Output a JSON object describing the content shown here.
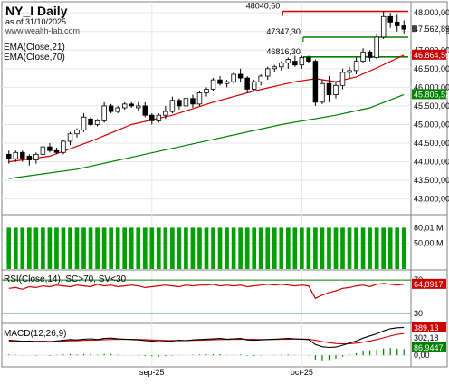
{
  "header": {
    "title": "NY_I Daily",
    "asof": "as of 31/10/2025",
    "site": "www.wealth-lab.com"
  },
  "colors": {
    "price": "#000000",
    "ema21": "#cc0000",
    "ema70": "#008000",
    "volume": "#00a000",
    "rsi": "#cc0000",
    "macd": "#000000",
    "macd_signal": "#cc0000",
    "hist": "#008000",
    "level": "#008000",
    "resistance": "#cc0000"
  },
  "chart_data": [
    {
      "type": "candlestick",
      "panel": "price",
      "title": "NY_I Daily",
      "ylim": [
        42700,
        48150
      ],
      "yticks": [
        "43.000,00",
        "43.500,00",
        "44.000,00",
        "44.500,00",
        "45.000,00",
        "45.500,00",
        "46.000,00",
        "46.500,00",
        "47.000,00",
        "47.500,00",
        "48.000,00"
      ],
      "candles": [
        [
          44200,
          44300,
          43950,
          44080
        ],
        [
          44080,
          44300,
          44000,
          44250
        ],
        [
          44250,
          44300,
          44000,
          44100
        ],
        [
          44150,
          44200,
          43900,
          44050
        ],
        [
          44050,
          44250,
          43950,
          44200
        ],
        [
          44200,
          44450,
          44150,
          44400
        ],
        [
          44400,
          44500,
          44250,
          44300
        ],
        [
          44300,
          44380,
          44200,
          44250
        ],
        [
          44250,
          44600,
          44200,
          44550
        ],
        [
          44550,
          44800,
          44450,
          44750
        ],
        [
          44750,
          44900,
          44650,
          44850
        ],
        [
          44850,
          45300,
          44800,
          45200
        ],
        [
          45150,
          45200,
          44950,
          45000
        ],
        [
          45000,
          45150,
          44950,
          45100
        ],
        [
          45100,
          45600,
          45050,
          45500
        ],
        [
          45500,
          45550,
          45300,
          45350
        ],
        [
          45350,
          45500,
          45300,
          45450
        ],
        [
          45450,
          45600,
          45400,
          45550
        ],
        [
          45550,
          45600,
          45450,
          45500
        ],
        [
          45450,
          45600,
          45350,
          45500
        ],
        [
          45500,
          45600,
          45200,
          45250
        ],
        [
          45250,
          45300,
          45000,
          45100
        ],
        [
          45100,
          45300,
          45050,
          45250
        ],
        [
          45250,
          45500,
          45150,
          45350
        ],
        [
          45350,
          45750,
          45300,
          45650
        ],
        [
          45650,
          45700,
          45400,
          45500
        ],
        [
          45500,
          45750,
          45450,
          45700
        ],
        [
          45700,
          45800,
          45450,
          45550
        ],
        [
          45550,
          45900,
          45500,
          45850
        ],
        [
          45850,
          46000,
          45750,
          45950
        ],
        [
          45950,
          46250,
          45900,
          46200
        ],
        [
          46200,
          46300,
          46050,
          46100
        ],
        [
          46100,
          46200,
          46000,
          46150
        ],
        [
          46150,
          46400,
          46100,
          46350
        ],
        [
          46350,
          46500,
          46150,
          46250
        ],
        [
          46250,
          46300,
          45850,
          45950
        ],
        [
          45950,
          46200,
          45900,
          46150
        ],
        [
          46150,
          46350,
          46050,
          46300
        ],
        [
          46300,
          46550,
          46200,
          46500
        ],
        [
          46500,
          46600,
          46400,
          46550
        ],
        [
          46550,
          46700,
          46450,
          46650
        ],
        [
          46650,
          46800,
          46500,
          46750
        ],
        [
          46700,
          46850,
          46550,
          46600
        ],
        [
          46600,
          46850,
          46500,
          46800
        ],
        [
          46800,
          46850,
          46650,
          46700
        ],
        [
          46700,
          46750,
          45500,
          45600
        ],
        [
          45600,
          46200,
          45550,
          46100
        ],
        [
          46100,
          46300,
          45600,
          45800
        ],
        [
          45800,
          46150,
          45700,
          46050
        ],
        [
          46050,
          46500,
          45950,
          46400
        ],
        [
          46400,
          46550,
          46250,
          46450
        ],
        [
          46450,
          46800,
          46350,
          46700
        ],
        [
          46700,
          47050,
          46650,
          46950
        ],
        [
          46950,
          47000,
          46700,
          46800
        ],
        [
          46800,
          47450,
          46750,
          47350
        ],
        [
          47350,
          48050,
          47300,
          47900
        ],
        [
          47900,
          48000,
          47600,
          47750
        ],
        [
          47750,
          47950,
          47500,
          47650
        ],
        [
          47650,
          47800,
          47450,
          47562
        ]
      ],
      "levels": [
        {
          "label": "48040,60",
          "value": 48040.6,
          "color": "resistance"
        },
        {
          "label": "47347,30",
          "value": 47347.3,
          "color": "level"
        },
        {
          "label": "46816,30",
          "value": 46816.3,
          "color": "level"
        }
      ],
      "last_price": "47.562,89",
      "ema21_label": "EMA(Close,21)",
      "ema21_value": "46.864,56",
      "ema21": [
        [
          0,
          44000
        ],
        [
          6,
          44150
        ],
        [
          12,
          44550
        ],
        [
          18,
          45000
        ],
        [
          24,
          45250
        ],
        [
          30,
          45600
        ],
        [
          36,
          45900
        ],
        [
          42,
          46150
        ],
        [
          45,
          46230
        ],
        [
          48,
          46150
        ],
        [
          51,
          46280
        ],
        [
          54,
          46520
        ],
        [
          58,
          46865
        ]
      ],
      "ema70_label": "EMA(Close,70)",
      "ema70_value": "45.805,52",
      "ema70": [
        [
          0,
          43550
        ],
        [
          10,
          43800
        ],
        [
          20,
          44200
        ],
        [
          30,
          44600
        ],
        [
          40,
          45000
        ],
        [
          48,
          45250
        ],
        [
          53,
          45450
        ],
        [
          58,
          45805
        ]
      ],
      "x_labels": [
        {
          "label": "sep-25",
          "index": 21
        },
        {
          "label": "oct-25",
          "index": 43
        }
      ]
    },
    {
      "type": "bar",
      "panel": "volume",
      "ylim": [
        0,
        100
      ],
      "yticks": [
        "50,00 M"
      ],
      "last_label": "80,01 M",
      "value_each": 80.01
    },
    {
      "type": "line",
      "panel": "rsi",
      "title": "RSI(Close,14), SC>70, SV<30",
      "ylim": [
        20,
        80
      ],
      "yticks": [
        "30",
        "70"
      ],
      "last_label": "64,8917",
      "values": [
        60,
        61,
        59,
        62,
        61,
        63,
        62,
        64,
        63,
        62,
        64,
        63,
        62,
        65,
        63,
        64,
        62,
        63,
        64,
        63,
        61,
        62,
        63,
        64,
        63,
        62,
        64,
        63,
        64,
        64,
        65,
        63,
        64,
        63,
        64,
        62,
        63,
        64,
        65,
        64,
        65,
        64,
        63,
        64,
        63,
        48,
        52,
        55,
        57,
        60,
        61,
        63,
        64,
        62,
        65,
        66,
        65,
        64,
        64.9
      ]
    },
    {
      "type": "line",
      "panel": "macd",
      "title": "MACD(12,26,9)",
      "ylim": [
        -150,
        420
      ],
      "yticks": [
        "0,00"
      ],
      "macd_label": "389,13",
      "signal_label": "302,18",
      "hist_label": "86,9447",
      "macd": [
        210,
        205,
        195,
        200,
        190,
        195,
        185,
        200,
        210,
        220,
        215,
        225,
        230,
        220,
        235,
        240,
        230,
        225,
        220,
        215,
        205,
        200,
        190,
        195,
        200,
        210,
        205,
        215,
        220,
        225,
        230,
        235,
        225,
        230,
        235,
        215,
        210,
        215,
        220,
        225,
        230,
        235,
        230,
        225,
        220,
        150,
        120,
        110,
        115,
        140,
        170,
        200,
        240,
        270,
        300,
        340,
        370,
        385,
        389
      ],
      "signal": [
        200,
        200,
        198,
        198,
        196,
        196,
        194,
        195,
        198,
        202,
        204,
        208,
        212,
        213,
        217,
        221,
        223,
        223,
        222,
        221,
        218,
        214,
        210,
        207,
        206,
        206,
        206,
        208,
        210,
        213,
        216,
        220,
        221,
        223,
        225,
        223,
        221,
        220,
        220,
        221,
        223,
        225,
        226,
        226,
        225,
        210,
        192,
        176,
        164,
        159,
        161,
        169,
        183,
        200,
        220,
        244,
        269,
        292,
        302
      ],
      "hist": [
        10,
        5,
        -3,
        2,
        -6,
        -1,
        -9,
        5,
        12,
        18,
        11,
        17,
        18,
        7,
        18,
        19,
        7,
        2,
        -2,
        -6,
        -13,
        -14,
        -20,
        -12,
        -6,
        4,
        -1,
        7,
        10,
        12,
        14,
        15,
        4,
        7,
        10,
        -8,
        -11,
        -5,
        0,
        4,
        7,
        10,
        4,
        -1,
        -5,
        -60,
        -72,
        -66,
        -49,
        -19,
        9,
        31,
        57,
        70,
        80,
        96,
        101,
        93,
        87
      ]
    }
  ]
}
